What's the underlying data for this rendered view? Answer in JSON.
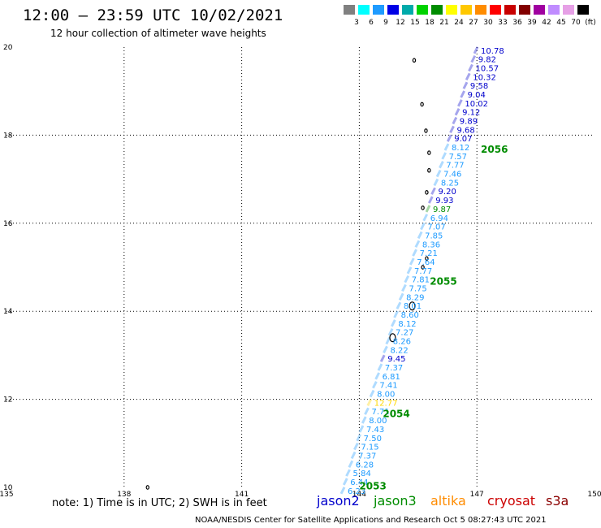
{
  "header": {
    "title": "12:00 — 23:59 UTC 10/02/2021",
    "subtitle": "12 hour collection of altimeter wave heights"
  },
  "legend": {
    "colors": [
      "#808080",
      "#00ffff",
      "#1e9bff",
      "#0000e6",
      "#00aaaa",
      "#00d200",
      "#008c00",
      "#ffff00",
      "#ffc800",
      "#ff8c00",
      "#ff0000",
      "#c80000",
      "#820000",
      "#a000a0",
      "#c08cff",
      "#e6a0e6",
      "#000000"
    ],
    "labels": [
      "3",
      "6",
      "9",
      "12",
      "15",
      "18",
      "21",
      "24",
      "27",
      "30",
      "33",
      "36",
      "39",
      "42",
      "45",
      "70",
      "(ft)"
    ]
  },
  "map": {
    "lon_ticks": [
      "135",
      "138",
      "141",
      "144",
      "147",
      "150"
    ],
    "lat_ticks": [
      "10",
      "12",
      "14",
      "16",
      "18",
      "20"
    ],
    "pass_labels": [
      {
        "text": "2056",
        "lon": 147.1,
        "lat": 17.6
      },
      {
        "text": "2055",
        "lon": 145.8,
        "lat": 14.6
      },
      {
        "text": "2054",
        "lon": 144.6,
        "lat": 11.6
      },
      {
        "text": "2053",
        "lon": 144.0,
        "lat": 9.95
      }
    ]
  },
  "chart_data": {
    "type": "scatter",
    "title": "12:00 — 23:59 UTC 10/02/2021",
    "subtitle": "12 hour collection of altimeter wave heights",
    "xlim": [
      135,
      150
    ],
    "ylim": [
      10,
      20
    ],
    "xticks": [
      135,
      138,
      141,
      144,
      147,
      150
    ],
    "yticks": [
      10,
      12,
      14,
      16,
      18,
      20
    ],
    "grid": true,
    "unit": "ft",
    "points": [
      {
        "v": "10.78",
        "lat": 19.93,
        "c": "#0000cc"
      },
      {
        "v": "9.82",
        "lat": 19.73,
        "c": "#0000cc"
      },
      {
        "v": "10.57",
        "lat": 19.53,
        "c": "#0000cc"
      },
      {
        "v": "10.32",
        "lat": 19.33,
        "c": "#0000cc"
      },
      {
        "v": "9.58",
        "lat": 19.13,
        "c": "#0000cc"
      },
      {
        "v": "9.04",
        "lat": 18.93,
        "c": "#0000cc"
      },
      {
        "v": "10.02",
        "lat": 18.73,
        "c": "#0000cc"
      },
      {
        "v": "9.12",
        "lat": 18.53,
        "c": "#0000cc"
      },
      {
        "v": "9.89",
        "lat": 18.33,
        "c": "#0000cc"
      },
      {
        "v": "9.68",
        "lat": 18.13,
        "c": "#0000cc"
      },
      {
        "v": "9.07",
        "lat": 17.93,
        "c": "#0000cc"
      },
      {
        "v": "8.12",
        "lat": 17.73,
        "c": "#1e9bff"
      },
      {
        "v": "7.57",
        "lat": 17.53,
        "c": "#1e9bff"
      },
      {
        "v": "7.77",
        "lat": 17.33,
        "c": "#1e9bff"
      },
      {
        "v": "7.46",
        "lat": 17.13,
        "c": "#1e9bff"
      },
      {
        "v": "8.25",
        "lat": 16.93,
        "c": "#1e9bff"
      },
      {
        "v": "9.20",
        "lat": 16.73,
        "c": "#0000cc"
      },
      {
        "v": "9.93",
        "lat": 16.53,
        "c": "#0000cc"
      },
      {
        "v": "9.87",
        "lat": 16.33,
        "c": "#008c00"
      },
      {
        "v": "6.94",
        "lat": 16.13,
        "c": "#1e9bff"
      },
      {
        "v": "7.07",
        "lat": 15.93,
        "c": "#1e9bff"
      },
      {
        "v": "7.85",
        "lat": 15.73,
        "c": "#1e9bff"
      },
      {
        "v": "8.36",
        "lat": 15.53,
        "c": "#1e9bff"
      },
      {
        "v": "7.21",
        "lat": 15.33,
        "c": "#1e9bff"
      },
      {
        "v": "7.64",
        "lat": 15.13,
        "c": "#1e9bff"
      },
      {
        "v": "7.77",
        "lat": 14.93,
        "c": "#1e9bff"
      },
      {
        "v": "7.81",
        "lat": 14.73,
        "c": "#1e9bff"
      },
      {
        "v": "7.75",
        "lat": 14.53,
        "c": "#1e9bff"
      },
      {
        "v": "8.29",
        "lat": 14.33,
        "c": "#1e9bff"
      },
      {
        "v": "8.01",
        "lat": 14.13,
        "c": "#1e9bff"
      },
      {
        "v": "8.60",
        "lat": 13.93,
        "c": "#1e9bff"
      },
      {
        "v": "8.12",
        "lat": 13.73,
        "c": "#1e9bff"
      },
      {
        "v": "7.27",
        "lat": 13.53,
        "c": "#1e9bff"
      },
      {
        "v": "8.26",
        "lat": 13.33,
        "c": "#1e9bff"
      },
      {
        "v": "8.22",
        "lat": 13.13,
        "c": "#1e9bff"
      },
      {
        "v": "9.45",
        "lat": 12.93,
        "c": "#0000cc"
      },
      {
        "v": "7.37",
        "lat": 12.73,
        "c": "#1e9bff"
      },
      {
        "v": "6.81",
        "lat": 12.53,
        "c": "#1e9bff"
      },
      {
        "v": "7.41",
        "lat": 12.33,
        "c": "#1e9bff"
      },
      {
        "v": "8.00",
        "lat": 12.13,
        "c": "#1e9bff"
      },
      {
        "v": "12.77",
        "lat": 11.93,
        "c": "#ffd700"
      },
      {
        "v": "7.71",
        "lat": 11.73,
        "c": "#1e9bff"
      },
      {
        "v": "8.00",
        "lat": 11.53,
        "c": "#1e9bff"
      },
      {
        "v": "7.43",
        "lat": 11.33,
        "c": "#1e9bff"
      },
      {
        "v": "7.50",
        "lat": 11.13,
        "c": "#1e9bff"
      },
      {
        "v": "7.15",
        "lat": 10.93,
        "c": "#1e9bff"
      },
      {
        "v": "7.37",
        "lat": 10.73,
        "c": "#1e9bff"
      },
      {
        "v": "6.28",
        "lat": 10.53,
        "c": "#1e9bff"
      },
      {
        "v": "5.84",
        "lat": 10.33,
        "c": "#1e9bff"
      },
      {
        "v": "6.44",
        "lat": 10.13,
        "c": "#1e9bff"
      },
      {
        "v": "6.23",
        "lat": 9.93,
        "c": "#1e9bff"
      }
    ],
    "track_endpoints": {
      "lat_a": 20.0,
      "lon_a": 147.0,
      "lat_b": 9.85,
      "lon_b": 143.55
    }
  },
  "footer": {
    "note": "note: 1) Time is in UTC; 2) SWH is in feet",
    "satellites": [
      {
        "name": "jason2",
        "color": "#0000cc"
      },
      {
        "name": "jason3",
        "color": "#008c00"
      },
      {
        "name": "altika",
        "color": "#ff8c00"
      },
      {
        "name": "cryosat",
        "color": "#cc0000"
      },
      {
        "name": "s3a",
        "color": "#8b0000"
      }
    ],
    "credit": "NOAA/NESDIS Center for Satellite Applications and Research    Oct  5 08:27:43 UTC 2021"
  }
}
